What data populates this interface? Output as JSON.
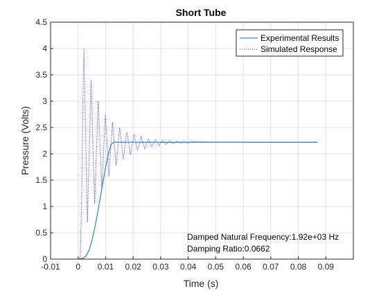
{
  "chart_data": {
    "type": "line",
    "title": "Short Tube",
    "xlabel": "Time (s)",
    "ylabel": "Pressure (Volts)",
    "xlim": [
      -0.01,
      0.1
    ],
    "ylim": [
      0,
      4.5
    ],
    "xticks": [
      -0.01,
      0,
      0.01,
      0.02,
      0.03,
      0.04,
      0.05,
      0.06,
      0.07,
      0.08,
      0.09
    ],
    "xtick_labels": [
      "-0.01",
      "0",
      "0.01",
      "0.02",
      "0.03",
      "0.04",
      "0.05",
      "0.06",
      "0.07",
      "0.08",
      "0.09"
    ],
    "yticks": [
      0,
      0.5,
      1,
      1.5,
      2,
      2.5,
      3,
      3.5,
      4,
      4.5
    ],
    "ytick_labels": [
      "0",
      "0.5",
      "1",
      "1.5",
      "2",
      "2.5",
      "3",
      "3.5",
      "4",
      "4.5"
    ],
    "grid": true,
    "legend_position": "top-right",
    "series": [
      {
        "name": "Experimental Results",
        "color": "#0072bd",
        "style": "solid",
        "x": [
          -0.01,
          0.0,
          0.002,
          0.003,
          0.004,
          0.005,
          0.006,
          0.007,
          0.008,
          0.009,
          0.01,
          0.011,
          0.012,
          0.013,
          0.015,
          0.02,
          0.03,
          0.05,
          0.07,
          0.087
        ],
        "y": [
          0.0,
          0.0,
          0.02,
          0.07,
          0.17,
          0.35,
          0.58,
          0.85,
          1.15,
          1.45,
          1.75,
          2.0,
          2.18,
          2.22,
          2.22,
          2.22,
          2.22,
          2.22,
          2.22,
          2.22
        ]
      },
      {
        "name": "Simulated Response",
        "color": "#3030ff",
        "style": "dotted",
        "x": [
          -0.01,
          0.0,
          0.0003,
          0.0008,
          0.0013,
          0.0018,
          0.0021,
          0.0047,
          0.0073,
          0.0099,
          0.0125,
          0.0151,
          0.0177,
          0.0203,
          0.0229,
          0.0255,
          0.0281,
          0.0307,
          0.0333,
          0.0359,
          0.0385,
          0.0411,
          0.0437,
          0.0463,
          0.0489,
          0.0515,
          0.0541,
          0.0567,
          0.0593,
          0.0619,
          0.0645,
          0.0671,
          0.0697,
          0.0723,
          0.0749,
          0.0775,
          0.0801,
          0.0827,
          0.0853,
          0.087
        ],
        "y": [
          0.0,
          0.0,
          0.0,
          0.05,
          1.2,
          3.2,
          4.0,
          3.4,
          3.0,
          2.75,
          2.6,
          2.5,
          2.42,
          2.36,
          2.32,
          2.29,
          2.27,
          2.26,
          2.25,
          2.24,
          2.235,
          2.23,
          2.228,
          2.226,
          2.225,
          2.224,
          2.223,
          2.222,
          2.222,
          2.221,
          2.221,
          2.221,
          2.22,
          2.22,
          2.22,
          2.22,
          2.22,
          2.22,
          2.22,
          2.22
        ],
        "troughs": [
          [
            0.0034,
            0.7
          ],
          [
            0.006,
            1.05
          ],
          [
            0.0086,
            1.35
          ],
          [
            0.0112,
            1.58
          ],
          [
            0.0138,
            1.78
          ],
          [
            0.0164,
            1.9
          ],
          [
            0.019,
            1.99
          ],
          [
            0.0216,
            2.06
          ],
          [
            0.0242,
            2.1
          ],
          [
            0.0268,
            2.13
          ],
          [
            0.0294,
            2.16
          ],
          [
            0.032,
            2.18
          ],
          [
            0.0346,
            2.19
          ],
          [
            0.0372,
            2.2
          ],
          [
            0.0398,
            2.205
          ]
        ]
      }
    ],
    "annotations": [
      {
        "text": "Damped Natural Frequency:1.92e+03 Hz"
      },
      {
        "text": "Damping Ratio:0.0662"
      }
    ]
  }
}
